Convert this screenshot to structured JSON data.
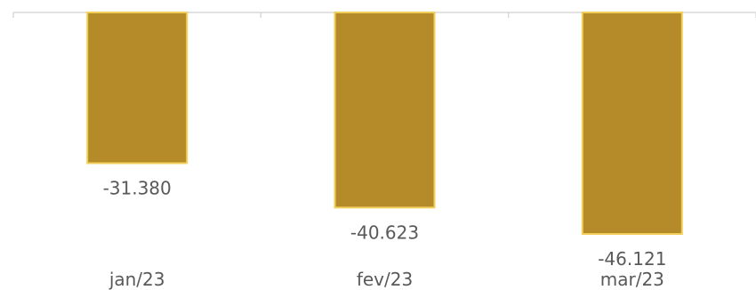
{
  "chart_data": {
    "type": "bar",
    "categories": [
      "jan/23",
      "fev/23",
      "mar/23"
    ],
    "series": [
      {
        "values": [
          -31380,
          -40623,
          -46121
        ],
        "labels": [
          "-31.380",
          "-40.623",
          "-46.121"
        ]
      }
    ],
    "ylim": [
      -46121,
      0
    ],
    "grid": false,
    "legend": "none",
    "colors": {
      "bar_fill": "#b58a28",
      "bar_stroke": "#f2cf5b",
      "axis": "#d9d9d9",
      "text": "#595959"
    }
  }
}
